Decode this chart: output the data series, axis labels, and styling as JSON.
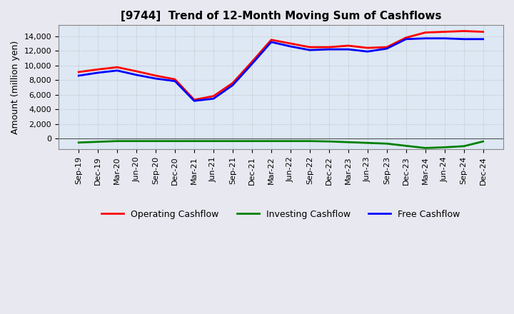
{
  "title": "[9744]  Trend of 12-Month Moving Sum of Cashflows",
  "ylabel": "Amount (million yen)",
  "x_labels": [
    "Sep-19",
    "Dec-19",
    "Mar-20",
    "Jun-20",
    "Sep-20",
    "Dec-20",
    "Mar-21",
    "Jun-21",
    "Sep-21",
    "Dec-21",
    "Mar-22",
    "Jun-22",
    "Sep-22",
    "Dec-22",
    "Mar-23",
    "Jun-23",
    "Sep-23",
    "Dec-23",
    "Mar-24",
    "Jun-24",
    "Sep-24",
    "Dec-24"
  ],
  "operating_cashflow": [
    9100,
    9450,
    9750,
    9200,
    8600,
    8100,
    5300,
    5800,
    7600,
    10500,
    13500,
    13000,
    12500,
    12500,
    12700,
    12400,
    12500,
    13800,
    14500,
    14600,
    14700,
    14600
  ],
  "investing_cashflow": [
    -550,
    -450,
    -350,
    -350,
    -350,
    -350,
    -350,
    -350,
    -350,
    -350,
    -350,
    -350,
    -350,
    -400,
    -500,
    -600,
    -700,
    -1000,
    -1300,
    -1200,
    -1050,
    -400
  ],
  "free_cashflow": [
    8600,
    9000,
    9300,
    8700,
    8200,
    7850,
    5150,
    5450,
    7300,
    10200,
    13200,
    12600,
    12100,
    12200,
    12200,
    11900,
    12300,
    13600,
    13700,
    13700,
    13600,
    13600
  ],
  "operating_color": "#ff0000",
  "investing_color": "#008000",
  "free_color": "#0000ff",
  "ylim_min": -1500,
  "ylim_max": 15500,
  "bg_color": "#eeeeff",
  "plot_bg_color": "#dde8f0",
  "grid_color": "#bbbbbb",
  "line_width": 2.0,
  "title_fontsize": 11,
  "axis_fontsize": 8,
  "ylabel_fontsize": 9
}
